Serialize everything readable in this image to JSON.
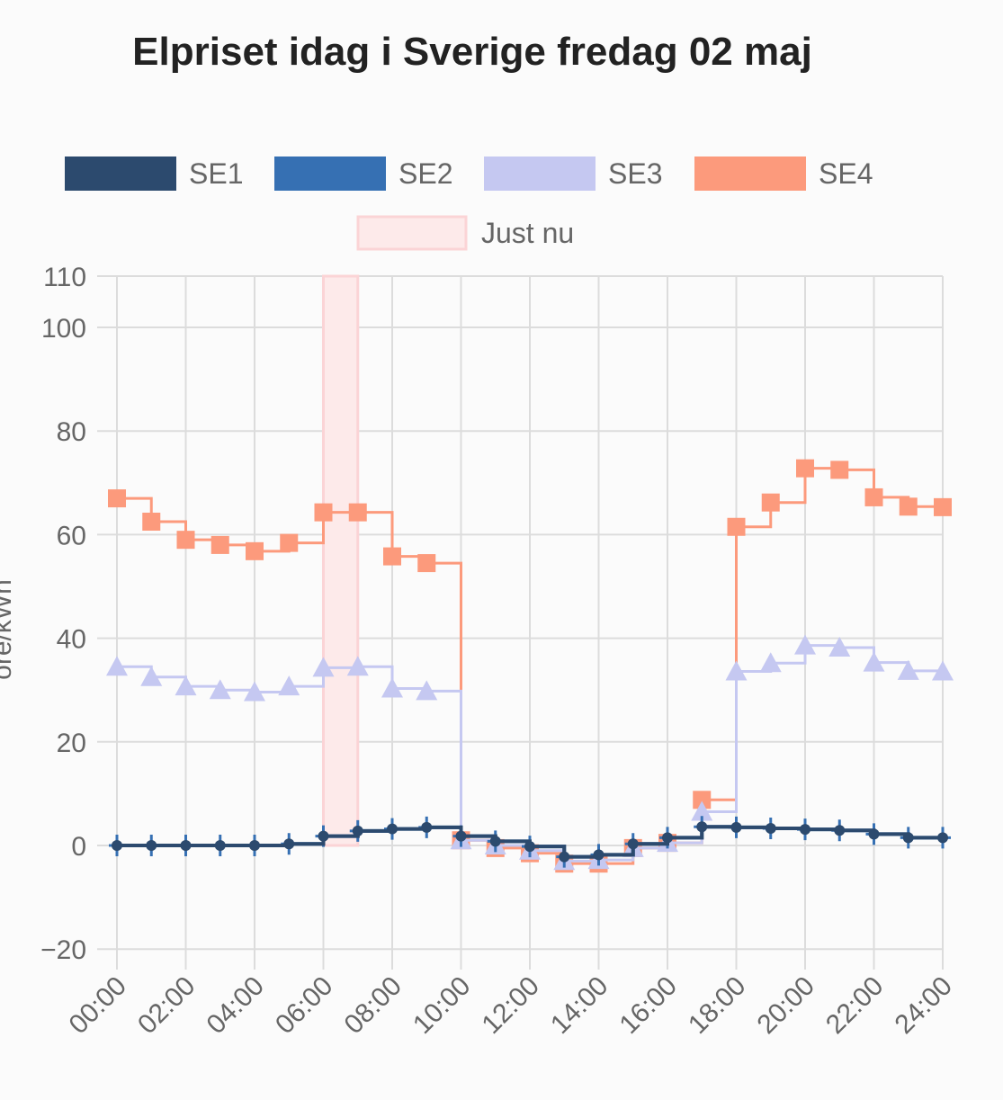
{
  "chart_data": {
    "type": "line",
    "title": "Elpriset idag i Sverige fredag 02 maj",
    "ylabel": "öre/kWh",
    "xlabel": "",
    "x": [
      "00:00",
      "01:00",
      "02:00",
      "03:00",
      "04:00",
      "05:00",
      "06:00",
      "07:00",
      "08:00",
      "09:00",
      "10:00",
      "11:00",
      "12:00",
      "13:00",
      "14:00",
      "15:00",
      "16:00",
      "17:00",
      "18:00",
      "19:00",
      "20:00",
      "21:00",
      "22:00",
      "23:00",
      "24:00"
    ],
    "x_tick_labels": [
      "00:00",
      "02:00",
      "04:00",
      "06:00",
      "08:00",
      "10:00",
      "12:00",
      "14:00",
      "16:00",
      "18:00",
      "20:00",
      "22:00",
      "24:00"
    ],
    "y_ticks": [
      -20,
      0,
      20,
      40,
      60,
      80,
      100,
      110
    ],
    "ylim": [
      -20,
      110
    ],
    "step": "after",
    "grid": true,
    "legend_position": "top",
    "series": [
      {
        "name": "SE1",
        "color": "#2c4a6e",
        "marker": "circle",
        "values": [
          0,
          0,
          0,
          0,
          0,
          0.3,
          1.8,
          2.8,
          3.2,
          3.5,
          1.8,
          0.8,
          -0.2,
          -2.2,
          -1.8,
          0.3,
          1.5,
          3.6,
          3.5,
          3.3,
          3.1,
          2.9,
          2.2,
          1.5,
          1.5
        ]
      },
      {
        "name": "SE2",
        "color": "#3670b3",
        "marker": "cross",
        "values": [
          0,
          0,
          0,
          0,
          0,
          0.3,
          1.8,
          2.8,
          3.2,
          3.5,
          1.8,
          0.8,
          -0.2,
          -2.2,
          -1.8,
          0.3,
          1.5,
          3.6,
          3.5,
          3.3,
          3.1,
          2.9,
          2.2,
          1.5,
          1.5
        ]
      },
      {
        "name": "SE3",
        "color": "#c5c8f1",
        "marker": "triangle",
        "values": [
          34.5,
          32.5,
          30.7,
          30.0,
          29.6,
          30.7,
          34.3,
          34.5,
          30.3,
          29.8,
          1.0,
          0.0,
          -1.0,
          -3.0,
          -2.8,
          -0.5,
          0.5,
          6.5,
          33.6,
          35.2,
          38.6,
          38.2,
          35.3,
          33.7,
          33.6
        ]
      },
      {
        "name": "SE4",
        "color": "#fc9a7c",
        "marker": "square",
        "values": [
          67.0,
          62.5,
          59.0,
          58.0,
          56.8,
          58.4,
          64.3,
          64.3,
          55.8,
          54.5,
          1.0,
          -0.5,
          -1.5,
          -3.5,
          -3.5,
          -0.5,
          0.5,
          8.8,
          61.5,
          66.2,
          72.8,
          72.5,
          67.2,
          65.4,
          65.3
        ]
      }
    ],
    "highlight": {
      "name": "Just nu",
      "from": "06:00",
      "to": "07:00",
      "color": "#fdeaea",
      "border": "#fbd4d6"
    }
  }
}
